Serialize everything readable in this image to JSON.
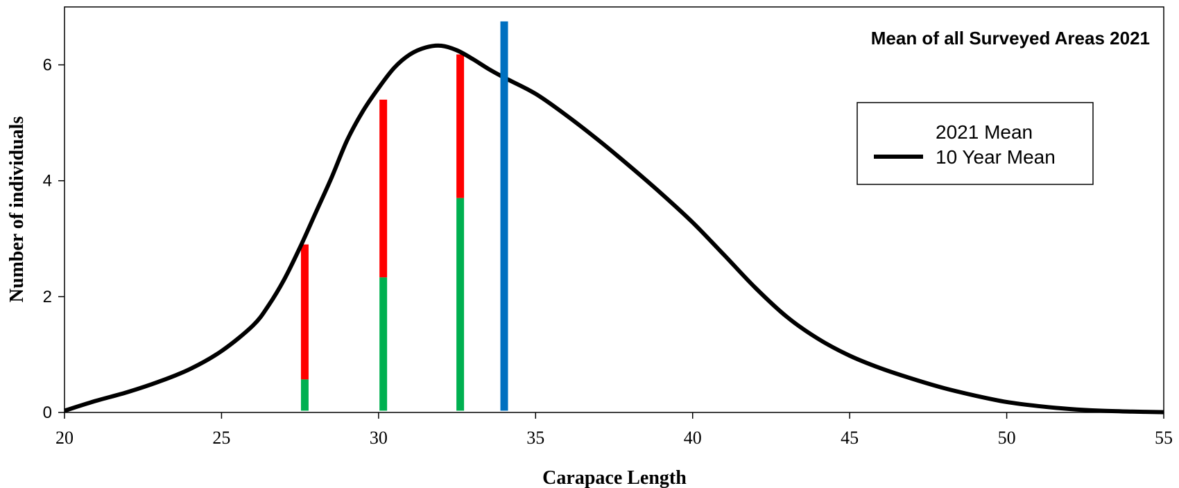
{
  "chart_data": {
    "type": "line",
    "title": "Mean of all Surveyed Areas 2021",
    "xlabel": "Carapace Length",
    "ylabel": "Number of individuals",
    "xlim": [
      20,
      55
    ],
    "ylim": [
      0,
      7
    ],
    "xticks": [
      20,
      25,
      30,
      35,
      40,
      45,
      50,
      55
    ],
    "yticks": [
      0,
      2,
      4,
      6
    ],
    "grid": false,
    "legend": {
      "placement": "top-right",
      "entries": [
        "2021 Mean",
        "10 Year Mean"
      ]
    },
    "series": [
      {
        "color": "#000000",
        "x": [
          20,
          21,
          22,
          23,
          24,
          25,
          26,
          26.5,
          27,
          27.5,
          28,
          28.5,
          29,
          29.5,
          30,
          30.5,
          31,
          31.5,
          32,
          32.5,
          33,
          33.5,
          34,
          35,
          36,
          37,
          38,
          39,
          40,
          41,
          42,
          43,
          44,
          45,
          46,
          47,
          48,
          49,
          50,
          51,
          52,
          53,
          54,
          55
        ],
        "y": [
          0.03,
          0.2,
          0.35,
          0.53,
          0.75,
          1.06,
          1.5,
          1.85,
          2.3,
          2.85,
          3.45,
          4.05,
          4.7,
          5.2,
          5.6,
          5.95,
          6.18,
          6.3,
          6.33,
          6.25,
          6.1,
          5.93,
          5.78,
          5.5,
          5.12,
          4.7,
          4.25,
          3.78,
          3.28,
          2.72,
          2.15,
          1.65,
          1.27,
          0.98,
          0.76,
          0.58,
          0.42,
          0.29,
          0.18,
          0.11,
          0.06,
          0.03,
          0.015,
          0.005
        ]
      }
    ],
    "bars": [
      {
        "x": 27.65,
        "green": 0.57,
        "red_top": 2.9,
        "color_low": "#00b050",
        "color_high": "#ff0000"
      },
      {
        "x": 30.15,
        "green": 2.33,
        "red_top": 5.4,
        "color_low": "#00b050",
        "color_high": "#ff0000"
      },
      {
        "x": 32.6,
        "green": 3.7,
        "red_top": 6.18,
        "color_low": "#00b050",
        "color_high": "#ff0000"
      }
    ],
    "marker": {
      "x": 34.0,
      "top": 6.75,
      "color": "#0070c0"
    }
  }
}
